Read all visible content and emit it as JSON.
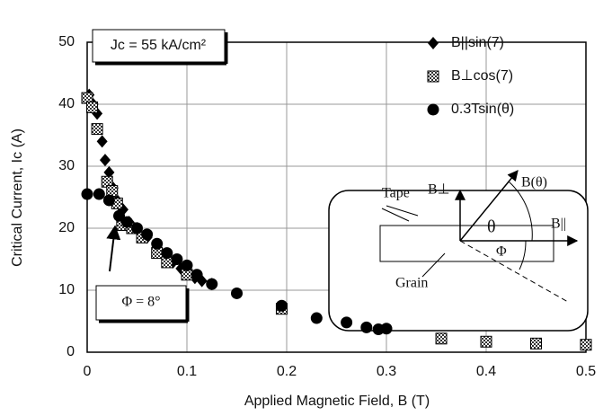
{
  "chart_data": {
    "type": "scatter",
    "xlabel": "Applied Magnetic Field, B (T)",
    "ylabel": "Critical Current, Ic (A)",
    "xlim": [
      0,
      0.5
    ],
    "xticks": [
      0,
      0.1,
      0.2,
      0.3,
      0.4,
      0.5
    ],
    "ylim": [
      0,
      50
    ],
    "yticks": [
      0,
      10,
      20,
      30,
      40,
      50
    ],
    "grid": true,
    "legend": "upper right",
    "series": [
      {
        "name": "B||sin(7)",
        "color": "#000000",
        "marker": "diamond",
        "x": [
          0.002,
          0.006,
          0.01,
          0.015,
          0.018,
          0.022,
          0.026,
          0.03,
          0.036,
          0.042,
          0.05,
          0.06,
          0.07,
          0.078,
          0.086,
          0.094,
          0.1,
          0.108,
          0.115,
          0.125
        ],
        "values": [
          41.5,
          40,
          38.5,
          34,
          31,
          29,
          26.5,
          24.5,
          23,
          21,
          20,
          18.5,
          17,
          15.5,
          14.5,
          13.5,
          13,
          12,
          11.5,
          11
        ]
      },
      {
        "name": "B⊥cos(7)",
        "color": "#000000",
        "marker": "square",
        "x": [
          0,
          0.005,
          0.01,
          0.02,
          0.025,
          0.03,
          0.035,
          0.045,
          0.055,
          0.07,
          0.08,
          0.1,
          0.195,
          0.355,
          0.4,
          0.45,
          0.5
        ],
        "values": [
          41,
          39.5,
          36,
          27.5,
          26,
          24,
          20.5,
          20,
          18.5,
          16,
          14.5,
          12.5,
          7,
          2.2,
          1.7,
          1.4,
          1.2
        ]
      },
      {
        "name": "0.3Tsin(θ)",
        "color": "#000000",
        "marker": "circle",
        "x": [
          0,
          0.012,
          0.022,
          0.032,
          0.04,
          0.05,
          0.06,
          0.07,
          0.08,
          0.09,
          0.1,
          0.11,
          0.125,
          0.15,
          0.195,
          0.23,
          0.26,
          0.28,
          0.292,
          0.3
        ],
        "values": [
          25.5,
          25.5,
          24.5,
          22,
          21,
          20,
          19,
          17.5,
          16,
          15,
          14,
          12.5,
          11,
          9.5,
          7.5,
          5.5,
          4.8,
          4,
          3.7,
          3.8
        ]
      }
    ],
    "annotations": [
      "Jc = 55 kA/cm²",
      "Φ = 8°"
    ],
    "inset": {
      "tape": "Tape",
      "grain": "Grain",
      "b_perp": "B⊥",
      "b_theta": "B(θ)",
      "b_par": "B||",
      "theta": "θ",
      "phi": "Φ"
    }
  }
}
